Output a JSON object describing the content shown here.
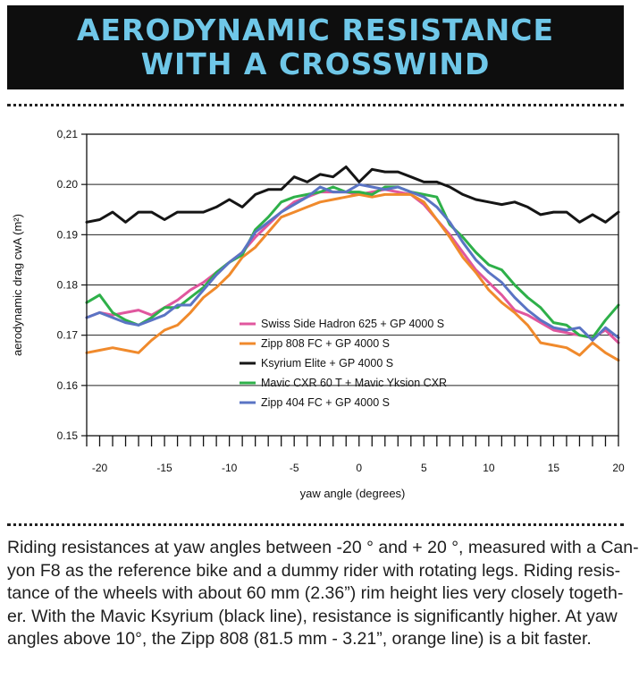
{
  "header": {
    "title_line1": "AERODYNAMIC RESISTANCE",
    "title_line2": "WITH A CROSSWIND"
  },
  "caption": {
    "lines": [
      "Riding resistances at yaw angles between -20 ° and + 20 °, measured with a Can-",
      "yon F8 as the reference bike and a dummy rider with rotating legs. Riding resis-",
      "tance of the wheels with about 60 mm (2.36”) rim height lies very closely togeth-",
      "er. With the Mavic Ksyrium (black line), resistance is significantly higher. At yaw",
      "angles above 10°, the Zipp 808 (81.5 mm - 3.21”, orange line) is a bit faster."
    ]
  },
  "chart_data": {
    "type": "line",
    "xlabel": "yaw angle (degrees)",
    "ylabel": "aerodynamic drag cwA (m²)",
    "xlim": [
      -21,
      20
    ],
    "ylim": [
      0.15,
      0.21
    ],
    "x_ticks": [
      -20,
      -15,
      -10,
      -5,
      0,
      5,
      10,
      15,
      20
    ],
    "y_ticks": [
      0.15,
      0.16,
      0.17,
      0.18,
      0.19,
      0.2,
      0.21
    ],
    "y_tick_labels": [
      "0.15",
      "0.16",
      "0.17",
      "0.18",
      "0.19",
      "0.20",
      "0,21"
    ],
    "grid": "horizontal",
    "legend_position": "lower-center",
    "x": [
      -21,
      -20,
      -19,
      -18,
      -17,
      -16,
      -15,
      -14,
      -13,
      -12,
      -11,
      -10,
      -9,
      -8,
      -7,
      -6,
      -5,
      -4,
      -3,
      -2,
      -1,
      0,
      1,
      2,
      3,
      4,
      5,
      6,
      7,
      8,
      9,
      10,
      11,
      12,
      13,
      14,
      15,
      16,
      17,
      18,
      19,
      20
    ],
    "series": [
      {
        "name": "Swiss Side Hadron 625 + GP 4000 S",
        "color": "#e0579e",
        "values": [
          0.1735,
          0.1745,
          0.174,
          0.1745,
          0.175,
          0.174,
          0.1755,
          0.177,
          0.179,
          0.1805,
          0.1825,
          0.1845,
          0.1865,
          0.1895,
          0.192,
          0.1945,
          0.1965,
          0.1975,
          0.1985,
          0.1985,
          0.1985,
          0.198,
          0.1985,
          0.199,
          0.1985,
          0.198,
          0.196,
          0.193,
          0.19,
          0.1865,
          0.183,
          0.1805,
          0.178,
          0.175,
          0.174,
          0.1725,
          0.171,
          0.1705,
          0.17,
          0.1695,
          0.171,
          0.1685
        ]
      },
      {
        "name": "Zipp 808 FC + GP 4000 S",
        "color": "#f08a2c",
        "values": [
          0.1665,
          0.167,
          0.1675,
          0.167,
          0.1665,
          0.169,
          0.171,
          0.172,
          0.1745,
          0.1775,
          0.1795,
          0.182,
          0.1855,
          0.1875,
          0.1905,
          0.1935,
          0.1945,
          0.1955,
          0.1965,
          0.197,
          0.1975,
          0.198,
          0.1975,
          0.198,
          0.198,
          0.198,
          0.1965,
          0.193,
          0.1895,
          0.1855,
          0.1825,
          0.179,
          0.1765,
          0.1745,
          0.172,
          0.1685,
          0.168,
          0.1675,
          0.166,
          0.1685,
          0.1665,
          0.165
        ]
      },
      {
        "name": "Ksyrium Elite + GP 4000 S",
        "color": "#151515",
        "values": [
          0.1925,
          0.193,
          0.1945,
          0.1925,
          0.1945,
          0.1945,
          0.193,
          0.1945,
          0.1945,
          0.1945,
          0.1955,
          0.197,
          0.1955,
          0.198,
          0.199,
          0.199,
          0.2015,
          0.2005,
          0.202,
          0.2015,
          0.2035,
          0.2005,
          0.203,
          0.2025,
          0.2025,
          0.2015,
          0.2005,
          0.2005,
          0.1995,
          0.198,
          0.197,
          0.1965,
          0.196,
          0.1965,
          0.1955,
          0.194,
          0.1945,
          0.1945,
          0.1925,
          0.194,
          0.1925,
          0.1945
        ]
      },
      {
        "name": "Mavic CXR 60 T + Mavic Yksion CXR",
        "color": "#2eb049",
        "values": [
          0.1765,
          0.178,
          0.1745,
          0.173,
          0.172,
          0.1735,
          0.1755,
          0.1755,
          0.1775,
          0.1795,
          0.1825,
          0.1845,
          0.186,
          0.191,
          0.1935,
          0.1965,
          0.1975,
          0.198,
          0.1985,
          0.1995,
          0.1985,
          0.1985,
          0.198,
          0.1995,
          0.1995,
          0.1985,
          0.198,
          0.1975,
          0.192,
          0.1895,
          0.1865,
          0.184,
          0.183,
          0.18,
          0.1775,
          0.1755,
          0.1725,
          0.172,
          0.17,
          0.1695,
          0.173,
          0.176
        ]
      },
      {
        "name": "Zipp 404 FC + GP 4000 S",
        "color": "#5a74c4",
        "values": [
          0.1735,
          0.1745,
          0.1735,
          0.1725,
          0.172,
          0.173,
          0.174,
          0.176,
          0.176,
          0.179,
          0.182,
          0.1845,
          0.1865,
          0.1905,
          0.1925,
          0.1945,
          0.196,
          0.1975,
          0.1995,
          0.1985,
          0.1985,
          0.2,
          0.1995,
          0.199,
          0.1995,
          0.1985,
          0.1975,
          0.1955,
          0.1925,
          0.1885,
          0.185,
          0.1825,
          0.1805,
          0.1775,
          0.175,
          0.173,
          0.1715,
          0.171,
          0.1715,
          0.169,
          0.1715,
          0.1695
        ]
      }
    ]
  }
}
